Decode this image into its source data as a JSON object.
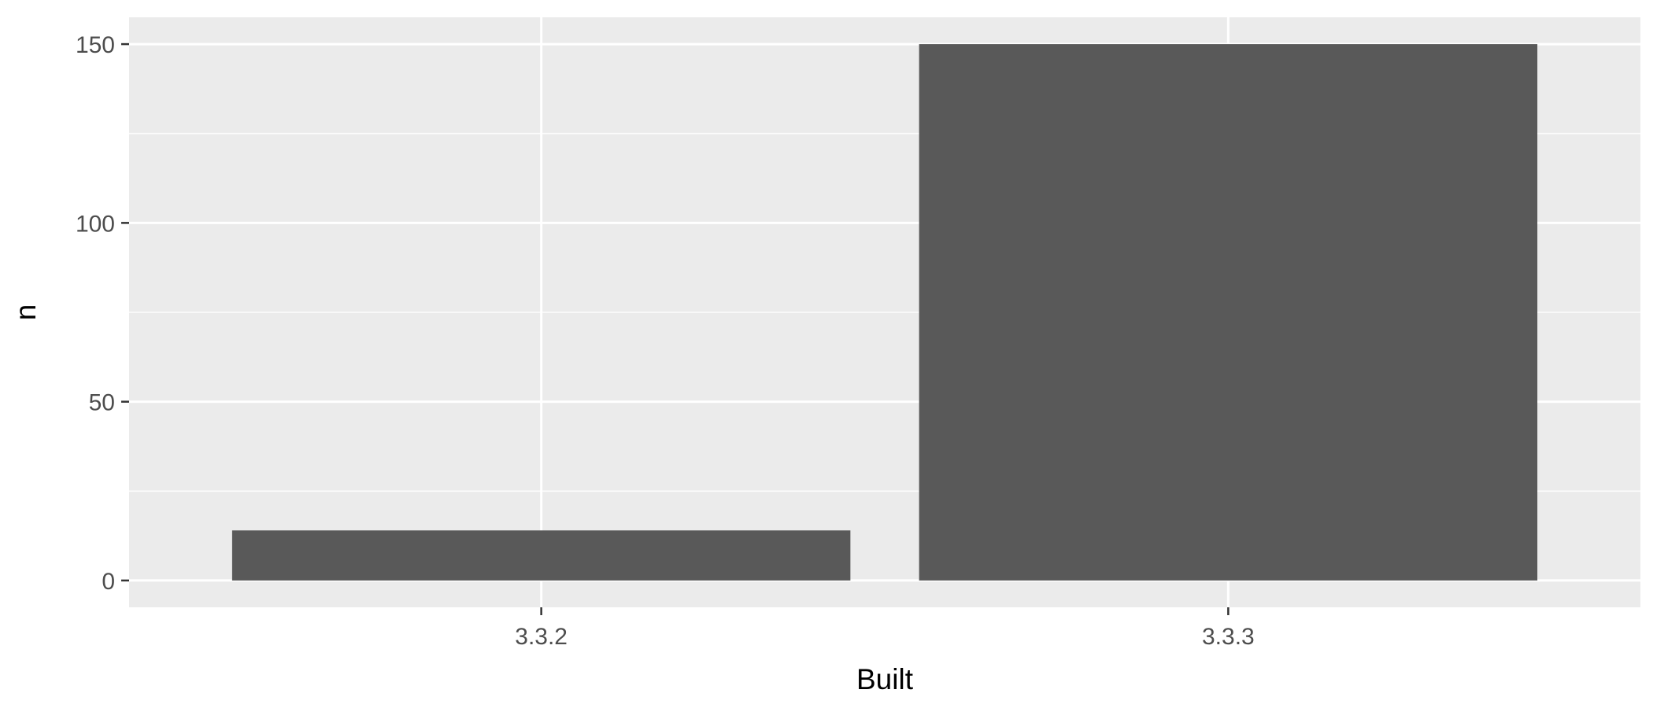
{
  "chart_data": {
    "type": "bar",
    "title": "",
    "xlabel": "Built",
    "ylabel": "n",
    "categories": [
      "3.3.2",
      "3.3.3"
    ],
    "values": [
      14,
      150
    ],
    "ylim": [
      -7.5,
      157.5
    ],
    "yticks": [
      0,
      50,
      100,
      150
    ],
    "ytick_labels": [
      "0",
      "50",
      "100",
      "150"
    ],
    "grid": true,
    "legend": "none",
    "colors": {
      "panel_background": "#ebebeb",
      "grid_major": "#ffffff",
      "grid_minor": "#f7f7f7",
      "bar_fill": "#595959",
      "tick_mark": "#333333",
      "tick_label": "#4d4d4d",
      "axis_title": "#000000"
    }
  }
}
